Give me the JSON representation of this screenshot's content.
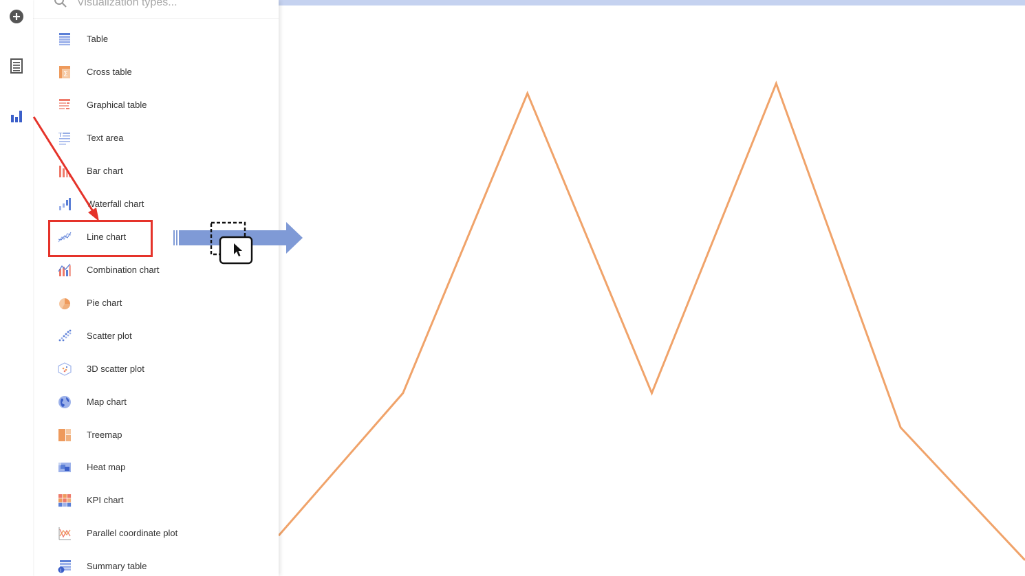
{
  "search": {
    "placeholder": "Visualization types..."
  },
  "rail": {
    "items": [
      {
        "name": "add-icon"
      },
      {
        "name": "data-table-icon"
      },
      {
        "name": "visualization-icon",
        "highlighted": true
      }
    ]
  },
  "viz_types": [
    {
      "label": "Table",
      "icon": "table-icon"
    },
    {
      "label": "Cross table",
      "icon": "cross-table-icon"
    },
    {
      "label": "Graphical table",
      "icon": "graphical-table-icon"
    },
    {
      "label": "Text area",
      "icon": "text-area-icon"
    },
    {
      "label": "Bar chart",
      "icon": "bar-chart-icon"
    },
    {
      "label": "Waterfall chart",
      "icon": "waterfall-chart-icon"
    },
    {
      "label": "Line chart",
      "icon": "line-chart-icon",
      "highlighted": true
    },
    {
      "label": "Combination chart",
      "icon": "combination-chart-icon"
    },
    {
      "label": "Pie chart",
      "icon": "pie-chart-icon"
    },
    {
      "label": "Scatter plot",
      "icon": "scatter-plot-icon"
    },
    {
      "label": "3D scatter plot",
      "icon": "3d-scatter-plot-icon"
    },
    {
      "label": "Map chart",
      "icon": "map-chart-icon"
    },
    {
      "label": "Treemap",
      "icon": "treemap-icon"
    },
    {
      "label": "Heat map",
      "icon": "heat-map-icon"
    },
    {
      "label": "KPI chart",
      "icon": "kpi-chart-icon"
    },
    {
      "label": "Parallel coordinate plot",
      "icon": "parallel-coordinate-plot-icon"
    },
    {
      "label": "Summary table",
      "icon": "summary-table-icon"
    }
  ],
  "colors": {
    "accent_blue": "#3b5fc9",
    "highlight_red": "#e5332a",
    "line_orange": "#f0a36a",
    "drag_arrow": "#7f9ad6"
  },
  "chart_data": {
    "type": "line",
    "x": [
      0,
      1,
      2,
      3,
      4,
      5,
      6
    ],
    "series": [
      {
        "values": [
          0.05,
          0.34,
          0.95,
          0.34,
          0.97,
          0.27,
          0.0
        ]
      }
    ],
    "ylim": [
      0,
      1
    ],
    "grid": false
  }
}
